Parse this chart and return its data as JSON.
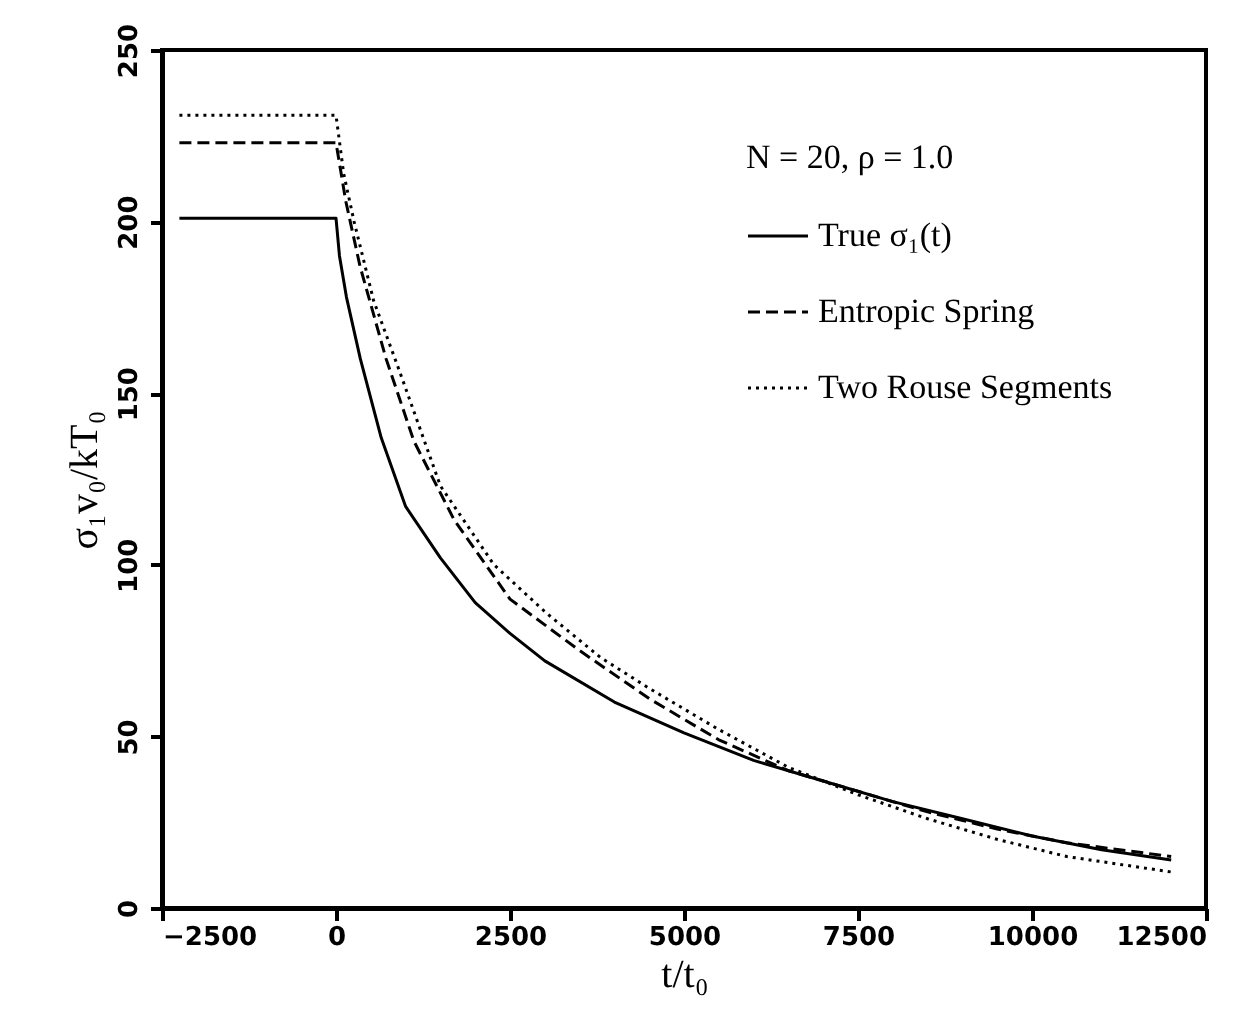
{
  "chart_data": {
    "type": "line",
    "xlabel": "t/t₀",
    "ylabel": "σ₁v₀/kT₀",
    "legend_title": "N = 20, ρ = 1.0",
    "xlim": [
      -2500,
      12500
    ],
    "xticks": [
      -2500,
      0,
      2500,
      5000,
      7500,
      10000,
      12500
    ],
    "ylim": [
      0,
      250
    ],
    "yticks": [
      0,
      50,
      100,
      150,
      200,
      250
    ],
    "grid": false,
    "legend": "top right",
    "marker": "none",
    "series": [
      {
        "name": "True σ₁(t)",
        "color": "#000000",
        "line_style": "solid",
        "x": [
          -2250,
          0,
          50,
          150,
          350,
          650,
          1000,
          1500,
          2000,
          2500,
          3000,
          4000,
          5000,
          6000,
          7000,
          8000,
          9000,
          10000,
          11000,
          12000
        ],
        "values": [
          201,
          201,
          190,
          178,
          160,
          137,
          117,
          102,
          89,
          80,
          72,
          60,
          51,
          43,
          37,
          31,
          26,
          21,
          17,
          14
        ]
      },
      {
        "name": "Entropic Spring",
        "color": "#000000",
        "line_style": "dashed",
        "x": [
          -2250,
          0,
          140,
          345,
          720,
          1120,
          1700,
          2500,
          3500,
          4500,
          5500,
          6500,
          7500,
          8500,
          9500,
          10500,
          12000
        ],
        "values": [
          223,
          223,
          206,
          187,
          160,
          136,
          113,
          90,
          75,
          61,
          49,
          40,
          34,
          28,
          23,
          19,
          15
        ]
      },
      {
        "name": "Two Rouse Segments",
        "color": "#000000",
        "line_style": "dotted",
        "x": [
          -2250,
          0,
          110,
          260,
          540,
          920,
          1500,
          2270,
          3020,
          3800,
          4500,
          5500,
          6500,
          7500,
          8500,
          9500,
          10500,
          12000
        ],
        "values": [
          231,
          231,
          214,
          200,
          177,
          156,
          123,
          100,
          86,
          73,
          64,
          52,
          41,
          33,
          26,
          20,
          15,
          10.5
        ]
      }
    ]
  }
}
